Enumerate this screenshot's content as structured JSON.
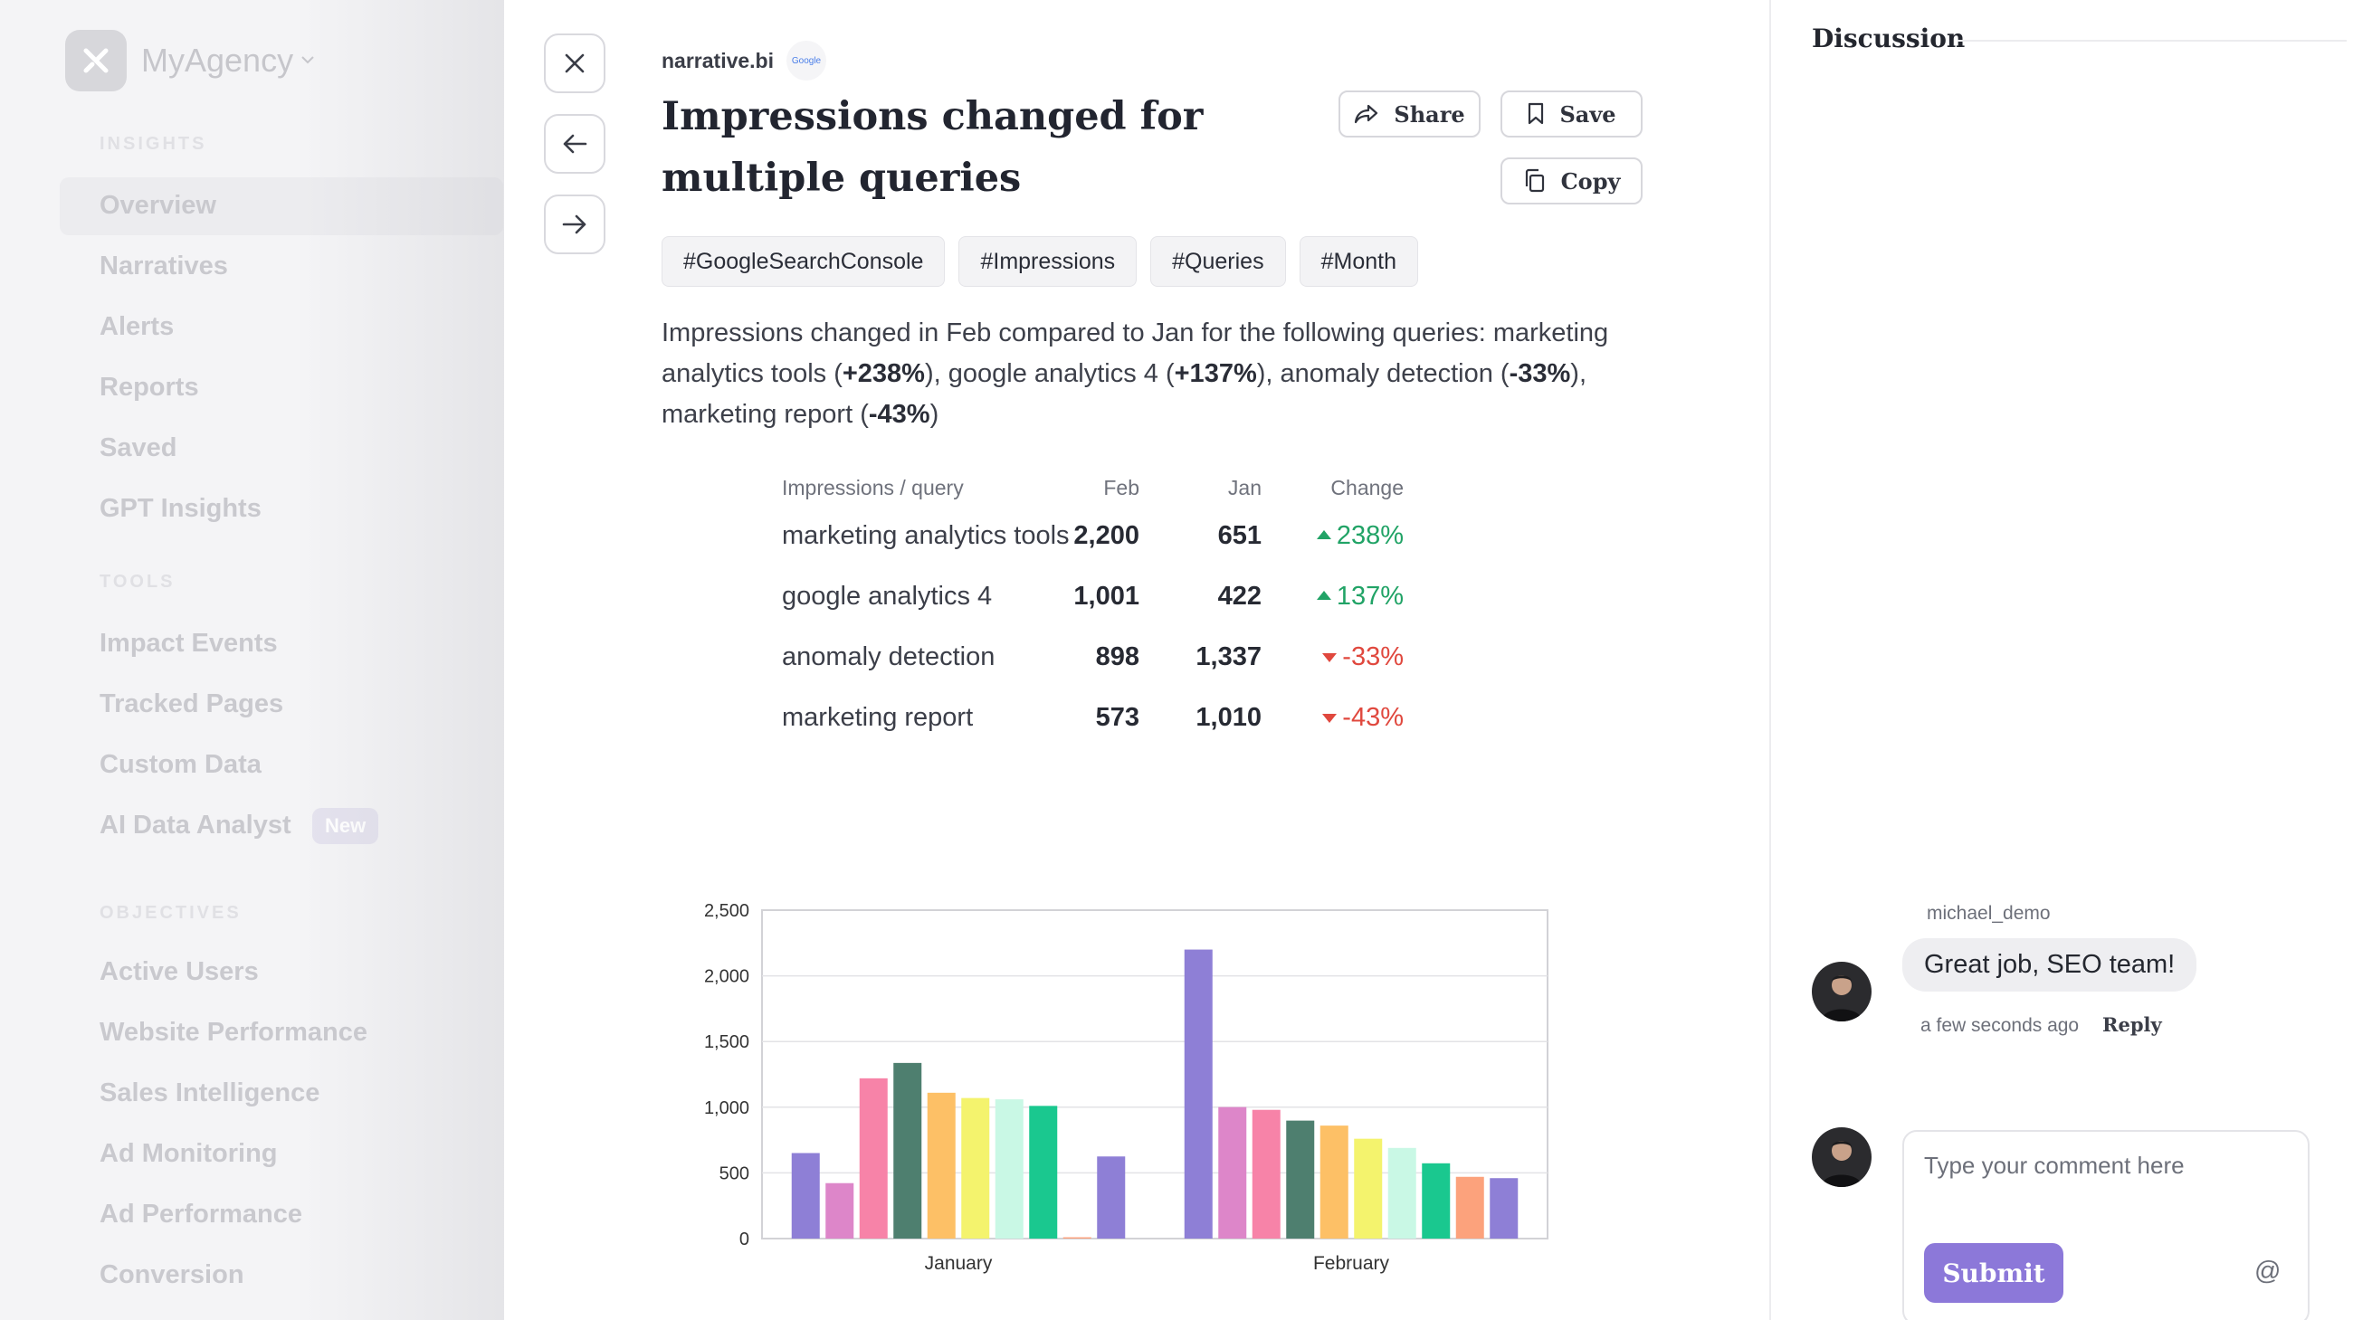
{
  "sidebar": {
    "brand": "MyAgency",
    "sections": [
      {
        "label": "INSIGHTS",
        "items": [
          "Overview",
          "Narratives",
          "Alerts",
          "Reports",
          "Saved",
          "GPT Insights"
        ]
      },
      {
        "label": "TOOLS",
        "items": [
          "Impact Events",
          "Tracked Pages",
          "Custom Data",
          "AI Data Analyst"
        ]
      },
      {
        "label": "OBJECTIVES",
        "items": [
          "Active Users",
          "Website Performance",
          "Sales Intelligence",
          "Ad Monitoring",
          "Ad Performance",
          "Conversion"
        ]
      }
    ],
    "active_item": "Overview",
    "new_badge": "New"
  },
  "insight": {
    "source": "narrative.bi",
    "source_logo_text": "Google",
    "title": "Impressions changed for multiple queries",
    "actions": {
      "share": "Share",
      "save": "Save",
      "copy": "Copy"
    },
    "tags": [
      "#GoogleSearchConsole",
      "#Impressions",
      "#Queries",
      "#Month"
    ],
    "summary": {
      "intro": "Impressions changed in Feb compared to Jan for the following queries: marketing analytics tools (",
      "v1": "+238%",
      "t1": "), google analytics 4 (",
      "v2": "+137%",
      "t2": "), anomaly detection (",
      "v3": "-33%",
      "t3": "), marketing report (",
      "v4": "-43%",
      "t4": ")"
    },
    "table": {
      "headers": [
        "Impressions / query",
        "Feb",
        "Jan",
        "Change"
      ],
      "rows": [
        {
          "query": "marketing analytics tools",
          "feb": "2,200",
          "jan": "651",
          "change": "238%",
          "direction": "up"
        },
        {
          "query": "google analytics 4",
          "feb": "1,001",
          "jan": "422",
          "change": "137%",
          "direction": "up"
        },
        {
          "query": "anomaly detection",
          "feb": "898",
          "jan": "1,337",
          "change": "-33%",
          "direction": "down"
        },
        {
          "query": "marketing report",
          "feb": "573",
          "jan": "1,010",
          "change": "-43%",
          "direction": "down"
        }
      ]
    }
  },
  "chart_data": {
    "type": "bar",
    "categories": [
      "January",
      "February"
    ],
    "ylim": [
      0,
      2500
    ],
    "yticks": [
      "0",
      "500",
      "1,000",
      "1,500",
      "2,000",
      "2,500"
    ],
    "grid": true,
    "colors": [
      "#8e7fd6",
      "#dd86c9",
      "#f783a8",
      "#4e7f6f",
      "#fdc066",
      "#f4f36d",
      "#c9f8e5",
      "#1ac88f",
      "#fca27c",
      "#8e7fd6"
    ],
    "series_values": [
      [
        651,
        2200
      ],
      [
        422,
        1001
      ],
      [
        1220,
        980
      ],
      [
        1337,
        898
      ],
      [
        1110,
        860
      ],
      [
        1070,
        760
      ],
      [
        1060,
        690
      ],
      [
        1010,
        573
      ],
      [
        10,
        470
      ],
      [
        625,
        460
      ]
    ]
  },
  "discussion": {
    "title": "Discussion",
    "comment": {
      "author": "michael_demo",
      "text": "Great job, SEO team!",
      "time": "a few seconds ago",
      "reply": "Reply"
    },
    "input_placeholder": "Type your comment here",
    "submit": "Submit",
    "mention": "@"
  }
}
